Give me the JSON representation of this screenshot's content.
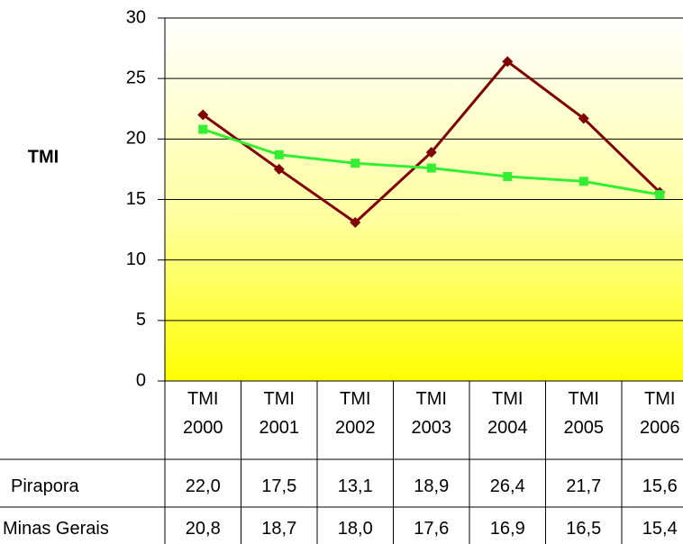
{
  "chart_data": {
    "type": "line",
    "ylabel": "TMI",
    "categories": [
      "TMI 2000",
      "TMI 2001",
      "TMI 2002",
      "TMI 2003",
      "TMI 2004",
      "TMI 2005",
      "TMI 2006"
    ],
    "series": [
      {
        "name": "Pirapora",
        "color": "#800000",
        "marker": "diamond",
        "values": [
          22.0,
          17.5,
          13.1,
          18.9,
          26.4,
          21.7,
          15.6
        ],
        "value_labels": [
          "22,0",
          "17,5",
          "13,1",
          "18,9",
          "26,4",
          "21,7",
          "15,6"
        ]
      },
      {
        "name": "Minas Gerais",
        "color": "#33ee33",
        "marker": "square",
        "values": [
          20.8,
          18.7,
          18.0,
          17.6,
          16.9,
          16.5,
          15.4
        ],
        "value_labels": [
          "20,8",
          "18,7",
          "18,0",
          "17,6",
          "16,9",
          "16,5",
          "15,4"
        ]
      }
    ],
    "ylim": [
      0,
      30
    ],
    "yticks": [
      0,
      5,
      10,
      15,
      20,
      25,
      30
    ],
    "grid": true
  }
}
